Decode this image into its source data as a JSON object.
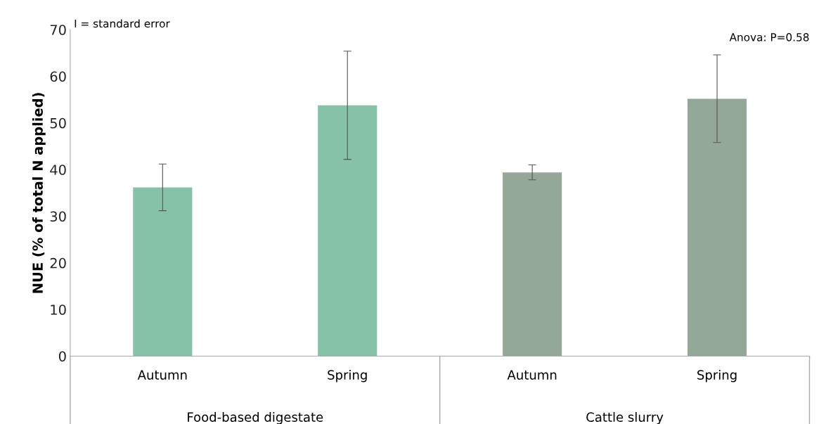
{
  "chart_data": {
    "type": "bar",
    "categories": [
      "Autumn",
      "Spring",
      "Autumn",
      "Spring"
    ],
    "values": [
      36.2,
      53.8,
      39.4,
      55.2
    ],
    "errors": [
      5.0,
      11.6,
      1.6,
      9.4
    ],
    "colors": [
      "#86c2a8",
      "#86c2a8",
      "#94a898",
      "#94a898"
    ],
    "ylabel": "NUE (% of total N applied)",
    "ylim": [
      0,
      70
    ],
    "yticks": [
      0,
      10,
      20,
      30,
      40,
      50,
      60,
      70
    ],
    "annotations": [
      "I = standard error",
      "Anova: P=0.58",
      "Food-based digestate",
      "Cattle slurry"
    ],
    "grid": false,
    "legend": false
  }
}
